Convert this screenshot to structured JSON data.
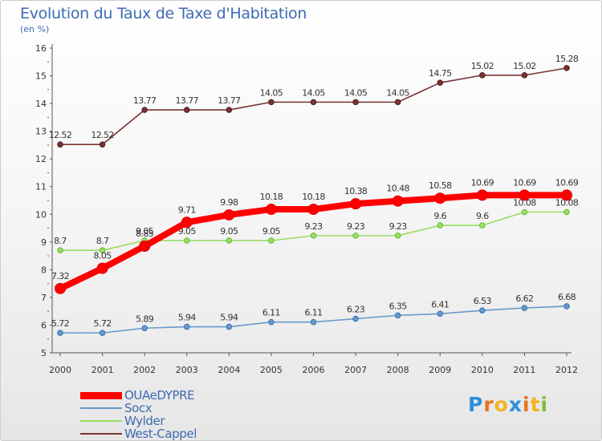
{
  "header": {
    "title": "Evolution du Taux de Taxe d'Habitation",
    "subtitle": "(en %)"
  },
  "chart_data": {
    "type": "line",
    "title": "Evolution du Taux de Taxe d'Habitation",
    "ylabel": "(en %)",
    "xlabel": "",
    "x": [
      "2000",
      "2001",
      "2002",
      "2003",
      "2004",
      "2005",
      "2006",
      "2007",
      "2008",
      "2009",
      "2010",
      "2011",
      "2012"
    ],
    "ylim": [
      5,
      16
    ],
    "yticks": [
      "5",
      "6",
      "7",
      "8",
      "9",
      "10",
      "11",
      "12",
      "13",
      "14",
      "15",
      "16"
    ],
    "grid": false,
    "legend_position": "bottom-left",
    "series": [
      {
        "name": "OUAeDYPRE",
        "color": "#ff0000",
        "values": [
          7.32,
          8.05,
          8.85,
          9.71,
          9.98,
          10.18,
          10.18,
          10.38,
          10.48,
          10.58,
          10.69,
          10.69,
          10.69
        ],
        "labels": [
          "7.32",
          "8.05",
          "8.85",
          "9.71",
          "9.98",
          "10.18",
          "10.18",
          "10.38",
          "10.48",
          "10.58",
          "10.69",
          "10.69",
          "10.69"
        ]
      },
      {
        "name": "Socx",
        "color": "#6699cc",
        "values": [
          5.72,
          5.72,
          5.89,
          5.94,
          5.94,
          6.11,
          6.11,
          6.23,
          6.35,
          6.41,
          6.53,
          6.62,
          6.68
        ],
        "labels": [
          "5.72",
          "5.72",
          "5.89",
          "5.94",
          "5.94",
          "6.11",
          "6.11",
          "6.23",
          "6.35",
          "6.41",
          "6.53",
          "6.62",
          "6.68"
        ]
      },
      {
        "name": "Wylder",
        "color": "#99dd66",
        "values": [
          8.7,
          8.7,
          9.05,
          9.05,
          9.05,
          9.05,
          9.23,
          9.23,
          9.23,
          9.6,
          9.6,
          10.08,
          10.08
        ],
        "labels": [
          "8.7",
          "8.7",
          "9.05",
          "9.05",
          "9.05",
          "9.05",
          "9.23",
          "9.23",
          "9.23",
          "9.6",
          "9.6",
          "10.08",
          "10.08"
        ]
      },
      {
        "name": "West-Cappel",
        "color": "#773333",
        "values": [
          12.52,
          12.52,
          13.77,
          13.77,
          13.77,
          14.05,
          14.05,
          14.05,
          14.05,
          14.75,
          15.02,
          15.02,
          15.28
        ],
        "labels": [
          "12.52",
          "12.52",
          "13.77",
          "13.77",
          "13.77",
          "14.05",
          "14.05",
          "14.05",
          "14.05",
          "14.75",
          "15.02",
          "15.02",
          "15.28"
        ]
      }
    ]
  },
  "legend": {
    "items": [
      {
        "label": "OUAeDYPRE",
        "color": "#ff0000"
      },
      {
        "label": "Socx",
        "color": "#6699cc"
      },
      {
        "label": "Wylder",
        "color": "#99dd66"
      },
      {
        "label": "West-Cappel",
        "color": "#773333"
      }
    ]
  },
  "brand": {
    "letters": [
      "P",
      "r",
      "o",
      "x",
      "i",
      "t",
      "i"
    ],
    "colors": [
      "#2f8fd8",
      "#e8731f",
      "#f2b51c",
      "#2f8fd8",
      "#e8731f",
      "#f2b51c",
      "#7bbf3a"
    ]
  }
}
